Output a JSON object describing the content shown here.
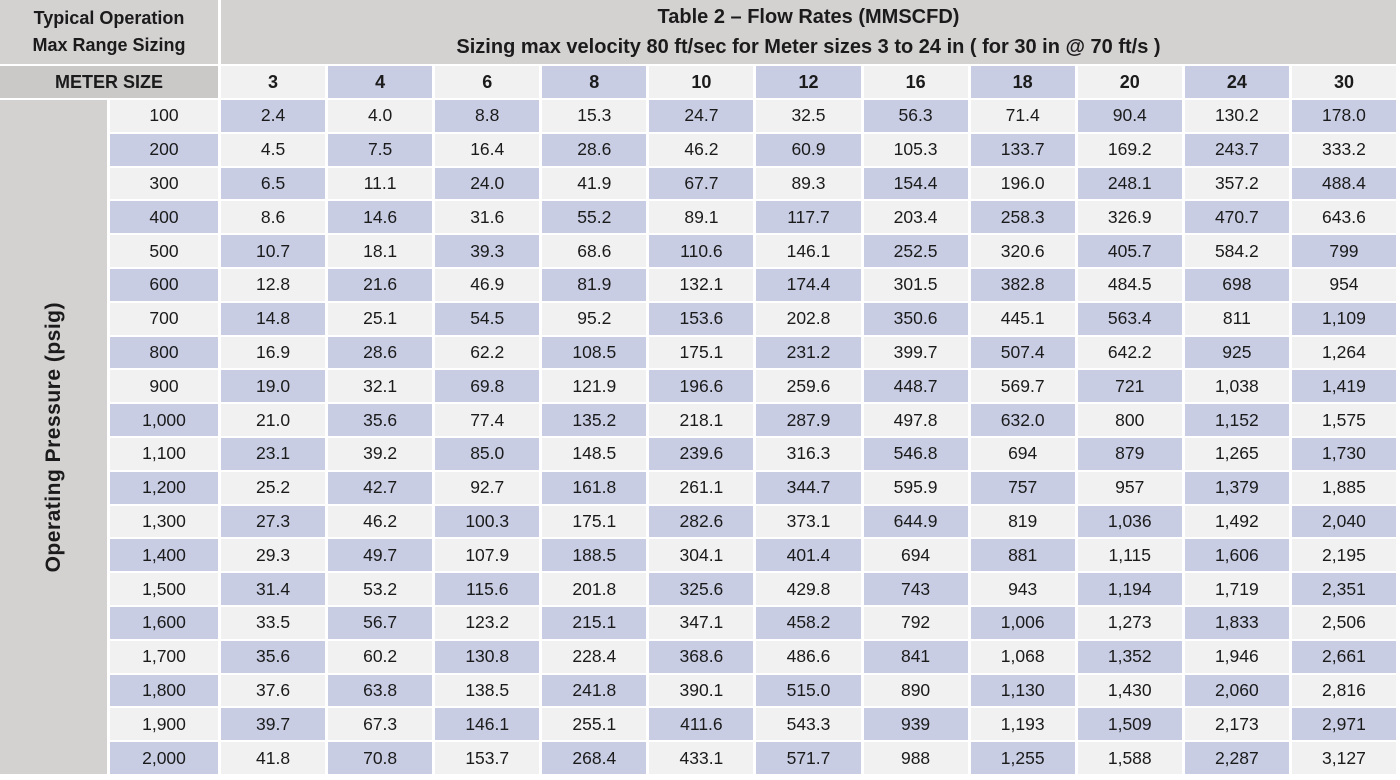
{
  "header": {
    "corner_line1": "Typical Operation",
    "corner_line2": "Max Range Sizing",
    "title_line1": "Table 2 – Flow Rates (MMSCFD)",
    "title_line2": "Sizing  max velocity 80 ft/sec for  Meter sizes 3 to 24 in  ( for 30 in @ 70 ft/s )",
    "meter_size_label": "METER SIZE"
  },
  "y_axis_label": "Operating Pressure (psig)",
  "chart_data": {
    "type": "table",
    "title": "Table 2 – Flow Rates (MMSCFD)",
    "subtitle": "Sizing max velocity 80 ft/sec for Meter sizes 3 to 24 in ( for 30 in @ 70 ft/s )",
    "row_axis_label": "Operating Pressure (psig)",
    "column_axis_label": "METER SIZE",
    "columns": [
      "3",
      "4",
      "6",
      "8",
      "10",
      "12",
      "16",
      "18",
      "20",
      "24",
      "30"
    ],
    "rows": [
      {
        "pressure": "100",
        "values": [
          "2.4",
          "4.0",
          "8.8",
          "15.3",
          "24.7",
          "32.5",
          "56.3",
          "71.4",
          "90.4",
          "130.2",
          "178.0"
        ]
      },
      {
        "pressure": "200",
        "values": [
          "4.5",
          "7.5",
          "16.4",
          "28.6",
          "46.2",
          "60.9",
          "105.3",
          "133.7",
          "169.2",
          "243.7",
          "333.2"
        ]
      },
      {
        "pressure": "300",
        "values": [
          "6.5",
          "11.1",
          "24.0",
          "41.9",
          "67.7",
          "89.3",
          "154.4",
          "196.0",
          "248.1",
          "357.2",
          "488.4"
        ]
      },
      {
        "pressure": "400",
        "values": [
          "8.6",
          "14.6",
          "31.6",
          "55.2",
          "89.1",
          "117.7",
          "203.4",
          "258.3",
          "326.9",
          "470.7",
          "643.6"
        ]
      },
      {
        "pressure": "500",
        "values": [
          "10.7",
          "18.1",
          "39.3",
          "68.6",
          "110.6",
          "146.1",
          "252.5",
          "320.6",
          "405.7",
          "584.2",
          "799"
        ]
      },
      {
        "pressure": "600",
        "values": [
          "12.8",
          "21.6",
          "46.9",
          "81.9",
          "132.1",
          "174.4",
          "301.5",
          "382.8",
          "484.5",
          "698",
          "954"
        ]
      },
      {
        "pressure": "700",
        "values": [
          "14.8",
          "25.1",
          "54.5",
          "95.2",
          "153.6",
          "202.8",
          "350.6",
          "445.1",
          "563.4",
          "811",
          "1,109"
        ]
      },
      {
        "pressure": "800",
        "values": [
          "16.9",
          "28.6",
          "62.2",
          "108.5",
          "175.1",
          "231.2",
          "399.7",
          "507.4",
          "642.2",
          "925",
          "1,264"
        ]
      },
      {
        "pressure": "900",
        "values": [
          "19.0",
          "32.1",
          "69.8",
          "121.9",
          "196.6",
          "259.6",
          "448.7",
          "569.7",
          "721",
          "1,038",
          "1,419"
        ]
      },
      {
        "pressure": "1,000",
        "values": [
          "21.0",
          "35.6",
          "77.4",
          "135.2",
          "218.1",
          "287.9",
          "497.8",
          "632.0",
          "800",
          "1,152",
          "1,575"
        ]
      },
      {
        "pressure": "1,100",
        "values": [
          "23.1",
          "39.2",
          "85.0",
          "148.5",
          "239.6",
          "316.3",
          "546.8",
          "694",
          "879",
          "1,265",
          "1,730"
        ]
      },
      {
        "pressure": "1,200",
        "values": [
          "25.2",
          "42.7",
          "92.7",
          "161.8",
          "261.1",
          "344.7",
          "595.9",
          "757",
          "957",
          "1,379",
          "1,885"
        ]
      },
      {
        "pressure": "1,300",
        "values": [
          "27.3",
          "46.2",
          "100.3",
          "175.1",
          "282.6",
          "373.1",
          "644.9",
          "819",
          "1,036",
          "1,492",
          "2,040"
        ]
      },
      {
        "pressure": "1,400",
        "values": [
          "29.3",
          "49.7",
          "107.9",
          "188.5",
          "304.1",
          "401.4",
          "694",
          "881",
          "1,115",
          "1,606",
          "2,195"
        ]
      },
      {
        "pressure": "1,500",
        "values": [
          "31.4",
          "53.2",
          "115.6",
          "201.8",
          "325.6",
          "429.8",
          "743",
          "943",
          "1,194",
          "1,719",
          "2,351"
        ]
      },
      {
        "pressure": "1,600",
        "values": [
          "33.5",
          "56.7",
          "123.2",
          "215.1",
          "347.1",
          "458.2",
          "792",
          "1,006",
          "1,273",
          "1,833",
          "2,506"
        ]
      },
      {
        "pressure": "1,700",
        "values": [
          "35.6",
          "60.2",
          "130.8",
          "228.4",
          "368.6",
          "486.6",
          "841",
          "1,068",
          "1,352",
          "1,946",
          "2,661"
        ]
      },
      {
        "pressure": "1,800",
        "values": [
          "37.6",
          "63.8",
          "138.5",
          "241.8",
          "390.1",
          "515.0",
          "890",
          "1,130",
          "1,430",
          "2,060",
          "2,816"
        ]
      },
      {
        "pressure": "1,900",
        "values": [
          "39.7",
          "67.3",
          "146.1",
          "255.1",
          "411.6",
          "543.3",
          "939",
          "1,193",
          "1,509",
          "2,173",
          "2,971"
        ]
      },
      {
        "pressure": "2,000",
        "values": [
          "41.8",
          "70.8",
          "153.7",
          "268.4",
          "433.1",
          "571.7",
          "988",
          "1,255",
          "1,588",
          "2,287",
          "3,127"
        ]
      }
    ]
  },
  "colors": {
    "header_gray": "#d4d1d1",
    "meter_row_gray": "#cbc8c8",
    "cell_lavender": "#c8cde4",
    "cell_light": "#f2f1f2",
    "gap_white": "#ffffff",
    "text": "#1b1b1b"
  }
}
